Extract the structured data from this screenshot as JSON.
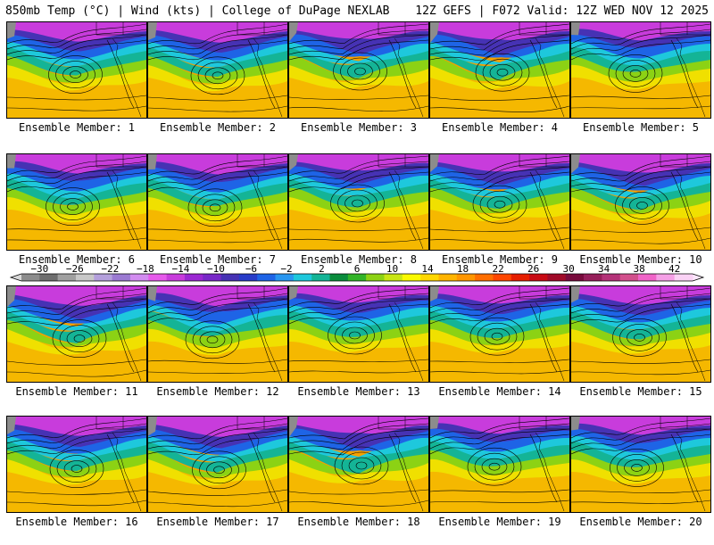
{
  "header": {
    "left_title": "850mb Temp (°C) | Wind (kts) | College of DuPage NEXLAB",
    "right_title": "12Z GEFS | F072 Valid: 12Z WED NOV 12 2025"
  },
  "panels": [
    {
      "label": "Ensemble Member: 1"
    },
    {
      "label": "Ensemble Member: 2"
    },
    {
      "label": "Ensemble Member: 3"
    },
    {
      "label": "Ensemble Member: 4"
    },
    {
      "label": "Ensemble Member: 5"
    },
    {
      "label": "Ensemble Member: 6"
    },
    {
      "label": "Ensemble Member: 7"
    },
    {
      "label": "Ensemble Member: 8"
    },
    {
      "label": "Ensemble Member: 9"
    },
    {
      "label": "Ensemble Member: 10"
    },
    {
      "label": "Ensemble Member: 11"
    },
    {
      "label": "Ensemble Member: 12"
    },
    {
      "label": "Ensemble Member: 13"
    },
    {
      "label": "Ensemble Member: 14"
    },
    {
      "label": "Ensemble Member: 15"
    },
    {
      "label": "Ensemble Member: 16"
    },
    {
      "label": "Ensemble Member: 17"
    },
    {
      "label": "Ensemble Member: 18"
    },
    {
      "label": "Ensemble Member: 19"
    },
    {
      "label": "Ensemble Member: 20"
    }
  ],
  "colorbar": {
    "labels": [
      "−30",
      "−26",
      "−22",
      "−18",
      "−14",
      "−10",
      "−6",
      "−2",
      "2",
      "6",
      "10",
      "14",
      "18",
      "22",
      "26",
      "30",
      "34",
      "38",
      "42"
    ],
    "colors": [
      "#8c8c8c",
      "#6e6e6e",
      "#a0a0a0",
      "#c8c8c8",
      "#b4a0dc",
      "#9b7ad2",
      "#d28cf0",
      "#e65aeb",
      "#c83cdc",
      "#9b28d2",
      "#7828c8",
      "#4632b4",
      "#283cc8",
      "#1e64e6",
      "#2896f0",
      "#1ec8dc",
      "#14b496",
      "#0a8c3c",
      "#32b428",
      "#8cd214",
      "#c8e614",
      "#fafa00",
      "#ffd700",
      "#ffb400",
      "#ff9600",
      "#ff6e00",
      "#ff4600",
      "#e61e00",
      "#c80a14",
      "#a00a28",
      "#780a3c",
      "#961e5a",
      "#b43278",
      "#d2508c",
      "#f064c8",
      "#f5a0e6",
      "#fad2f5"
    ]
  }
}
